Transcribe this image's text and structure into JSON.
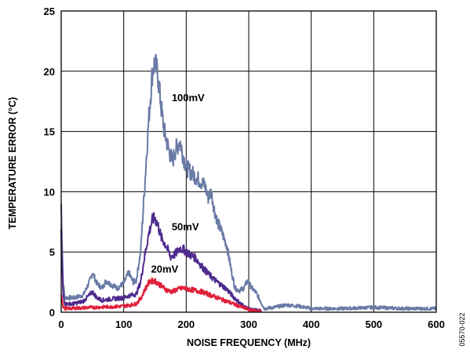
{
  "chart_data": {
    "type": "line",
    "title": "",
    "xlabel": "NOISE FREQUENCY (MHz)",
    "ylabel": "TEMPERATURE ERROR (°C)",
    "xlim": [
      0,
      600
    ],
    "ylim": [
      0,
      25
    ],
    "grid": true,
    "legend": "inline labels",
    "x_ticks": [
      "0",
      "100",
      "200",
      "300",
      "400",
      "500",
      "600"
    ],
    "y_ticks": [
      "0",
      "5",
      "10",
      "15",
      "20",
      "25"
    ],
    "figure_id": "05570-022",
    "series": [
      {
        "name": "100mV",
        "color": "#6a7aa6",
        "points": [
          [
            0,
            9
          ],
          [
            3,
            2.5
          ],
          [
            6,
            1.2
          ],
          [
            20,
            1.2
          ],
          [
            35,
            1.4
          ],
          [
            45,
            2.5
          ],
          [
            50,
            3.3
          ],
          [
            57,
            2.4
          ],
          [
            65,
            2.0
          ],
          [
            72,
            2.6
          ],
          [
            80,
            2.3
          ],
          [
            90,
            2.0
          ],
          [
            100,
            2.4
          ],
          [
            108,
            3.3
          ],
          [
            115,
            2.5
          ],
          [
            120,
            2.6
          ],
          [
            127,
            5.0
          ],
          [
            133,
            10.0
          ],
          [
            140,
            16.0
          ],
          [
            146,
            20.0
          ],
          [
            150,
            20.8
          ],
          [
            155,
            19.5
          ],
          [
            160,
            17.0
          ],
          [
            165,
            15.0
          ],
          [
            172,
            13.5
          ],
          [
            178,
            12.5
          ],
          [
            183,
            13.5
          ],
          [
            190,
            14.2
          ],
          [
            195,
            13.0
          ],
          [
            200,
            12.0
          ],
          [
            210,
            11.5
          ],
          [
            220,
            11.0
          ],
          [
            230,
            10.5
          ],
          [
            235,
            9.5
          ],
          [
            240,
            10.0
          ],
          [
            245,
            8.5
          ],
          [
            250,
            7.5
          ],
          [
            258,
            6.5
          ],
          [
            265,
            5.5
          ],
          [
            272,
            3.5
          ],
          [
            278,
            2.0
          ],
          [
            285,
            1.8
          ],
          [
            292,
            2.0
          ],
          [
            298,
            2.6
          ],
          [
            305,
            2.0
          ],
          [
            312,
            1.6
          ],
          [
            318,
            1.0
          ],
          [
            325,
            0.3
          ],
          [
            340,
            0.4
          ],
          [
            360,
            0.6
          ],
          [
            380,
            0.5
          ],
          [
            400,
            0.3
          ],
          [
            450,
            0.3
          ],
          [
            500,
            0.4
          ],
          [
            550,
            0.3
          ],
          [
            600,
            0.3
          ]
        ]
      },
      {
        "name": "50mV",
        "color": "#4e2a8e",
        "points": [
          [
            0,
            6.5
          ],
          [
            3,
            1.5
          ],
          [
            6,
            0.7
          ],
          [
            20,
            0.7
          ],
          [
            35,
            0.9
          ],
          [
            45,
            1.4
          ],
          [
            50,
            1.7
          ],
          [
            57,
            1.2
          ],
          [
            65,
            1.0
          ],
          [
            80,
            1.1
          ],
          [
            100,
            1.2
          ],
          [
            110,
            1.4
          ],
          [
            120,
            1.5
          ],
          [
            127,
            2.5
          ],
          [
            133,
            4.5
          ],
          [
            140,
            6.5
          ],
          [
            146,
            7.7
          ],
          [
            150,
            7.8
          ],
          [
            155,
            7.2
          ],
          [
            160,
            6.2
          ],
          [
            168,
            5.5
          ],
          [
            175,
            4.6
          ],
          [
            182,
            4.8
          ],
          [
            190,
            5.3
          ],
          [
            196,
            5.2
          ],
          [
            205,
            4.8
          ],
          [
            215,
            4.5
          ],
          [
            225,
            3.8
          ],
          [
            235,
            3.2
          ],
          [
            245,
            2.7
          ],
          [
            255,
            2.3
          ],
          [
            265,
            1.9
          ],
          [
            275,
            1.3
          ],
          [
            285,
            0.8
          ],
          [
            295,
            0.4
          ],
          [
            305,
            0.2
          ],
          [
            315,
            0.15
          ],
          [
            320,
            0.1
          ]
        ]
      },
      {
        "name": "20mV",
        "color": "#e0203a",
        "points": [
          [
            0,
            1.6
          ],
          [
            3,
            0.5
          ],
          [
            6,
            0.3
          ],
          [
            30,
            0.35
          ],
          [
            50,
            0.4
          ],
          [
            80,
            0.45
          ],
          [
            100,
            0.5
          ],
          [
            110,
            0.6
          ],
          [
            120,
            0.7
          ],
          [
            128,
            1.2
          ],
          [
            135,
            2.0
          ],
          [
            142,
            2.6
          ],
          [
            150,
            2.6
          ],
          [
            155,
            2.4
          ],
          [
            162,
            2.1
          ],
          [
            170,
            1.8
          ],
          [
            178,
            1.7
          ],
          [
            185,
            1.9
          ],
          [
            195,
            2.0
          ],
          [
            205,
            1.9
          ],
          [
            215,
            1.8
          ],
          [
            225,
            1.7
          ],
          [
            235,
            1.5
          ],
          [
            245,
            1.3
          ],
          [
            255,
            1.1
          ],
          [
            265,
            0.9
          ],
          [
            275,
            0.7
          ],
          [
            285,
            0.5
          ],
          [
            295,
            0.3
          ],
          [
            305,
            0.15
          ],
          [
            320,
            0.1
          ]
        ]
      }
    ],
    "annotations": [
      {
        "text": "100mV",
        "x": 173,
        "y": 17.5
      },
      {
        "text": "50mV",
        "x": 173,
        "y": 6.8
      },
      {
        "text": "20mV",
        "x": 140,
        "y": 3.3
      }
    ]
  }
}
